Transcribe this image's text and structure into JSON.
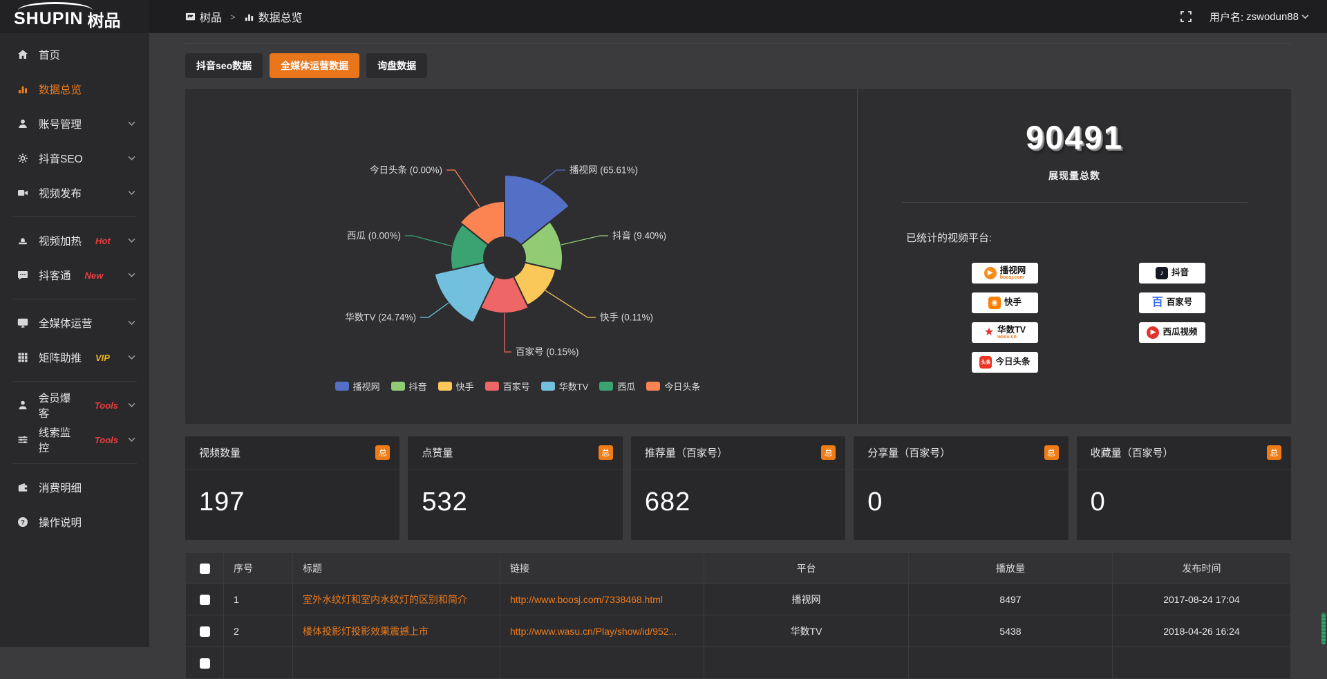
{
  "colors": {
    "accent_orange": "#e9761b",
    "hot_red": "#f23c3c",
    "vip_gold": "#e8b425",
    "link_orange": "#ef7b1a"
  },
  "header": {
    "logo_en": "SHUPIN",
    "logo_cn": "树品",
    "breadcrumb": [
      {
        "label": "树品"
      },
      {
        "label": "数据总览"
      }
    ],
    "username_label": "用户名:",
    "username": "zswodun88"
  },
  "sidebar": {
    "items": [
      {
        "label": "首页",
        "icon": "home-icon",
        "active": false,
        "expandable": false
      },
      {
        "label": "数据总览",
        "icon": "bar-chart-icon",
        "active": true,
        "expandable": false
      },
      {
        "label": "账号管理",
        "icon": "user-icon",
        "active": false,
        "expandable": true
      },
      {
        "label": "抖音SEO",
        "icon": "gear-icon",
        "active": false,
        "expandable": true
      },
      {
        "label": "视频发布",
        "icon": "video-icon",
        "active": false,
        "expandable": true
      },
      {
        "type": "divider"
      },
      {
        "label": "视频加热",
        "icon": "stamp-icon",
        "badge": "Hot",
        "badge_color": "#f23c3c",
        "active": false,
        "expandable": true
      },
      {
        "label": "抖客通",
        "icon": "chat-icon",
        "badge": "New",
        "badge_color": "#f23c3c",
        "active": false,
        "expandable": true
      },
      {
        "type": "divider"
      },
      {
        "label": "全媒体运营",
        "icon": "monitor-icon",
        "active": false,
        "expandable": true
      },
      {
        "label": "矩阵助推",
        "icon": "grid-icon",
        "badge": "VIP",
        "badge_color": "#e8b425",
        "active": false,
        "expandable": true
      },
      {
        "type": "divider"
      },
      {
        "label": "会员爆客",
        "icon": "member-icon",
        "badge": "Tools",
        "badge_color": "#f23c3c",
        "active": false,
        "expandable": true
      },
      {
        "label": "线索监控",
        "icon": "sliders-icon",
        "badge": "Tools",
        "badge_color": "#f23c3c",
        "active": false,
        "expandable": true
      },
      {
        "type": "divider"
      },
      {
        "label": "消费明细",
        "icon": "wallet-icon",
        "active": false,
        "expandable": false
      },
      {
        "label": "操作说明",
        "icon": "question-icon",
        "active": false,
        "expandable": false
      }
    ]
  },
  "tabs": [
    {
      "label": "抖音seo数据",
      "active": false
    },
    {
      "label": "全媒体运营数据",
      "active": true
    },
    {
      "label": "询盘数据",
      "active": false
    }
  ],
  "chart_data": {
    "type": "pie",
    "style": "nightingale-rose-donut",
    "legend_position": "bottom",
    "items": [
      {
        "name": "播视网",
        "percent": 65.61,
        "color": "#5470c6"
      },
      {
        "name": "抖音",
        "percent": 9.4,
        "color": "#91cc75"
      },
      {
        "name": "快手",
        "percent": 0.11,
        "color": "#fac858"
      },
      {
        "name": "百家号",
        "percent": 0.15,
        "color": "#ee6666"
      },
      {
        "name": "华数TV",
        "percent": 24.74,
        "color": "#73c0de"
      },
      {
        "name": "西瓜",
        "percent": 0.0,
        "color": "#3ba272"
      },
      {
        "name": "今日头条",
        "percent": 0.0,
        "color": "#fc8452"
      }
    ]
  },
  "summary": {
    "total_value": "90491",
    "total_label": "展现量总数",
    "platforms_label": "已统计的视频平台:",
    "platforms": [
      {
        "name": "播视网",
        "sub": "boosj.com",
        "sub_color": "#f27a1a",
        "logo": {
          "shape": "circle",
          "bg": "#f78c1f",
          "fg": "#ffffff",
          "glyph": "▶"
        }
      },
      {
        "name": "抖音",
        "logo": {
          "shape": "square",
          "bg": "#161823",
          "fg": "#ffffff",
          "glyph": "♪"
        }
      },
      {
        "name": "快手",
        "logo": {
          "shape": "square",
          "bg": "#ff7e00",
          "fg": "#ffffff",
          "glyph": "◉"
        }
      },
      {
        "name": "百家号",
        "logo": {
          "shape": "text",
          "bg": "transparent",
          "fg": "#3a6bf0",
          "glyph": "百"
        }
      },
      {
        "name": "华数TV",
        "sub": "wasu.cn",
        "sub_color": "#f27a1a",
        "logo": {
          "shape": "text",
          "bg": "transparent",
          "fg": "#e6302e",
          "glyph": "★"
        }
      },
      {
        "name": "西瓜视频",
        "logo": {
          "shape": "circle",
          "bg": "#e0332c",
          "fg": "#ffffff",
          "glyph": "▶"
        }
      },
      {
        "name": "今日头条",
        "logo": {
          "shape": "square",
          "bg": "#ed3321",
          "fg": "#ffffff",
          "glyph": "头条"
        }
      }
    ]
  },
  "stat_cards": [
    {
      "title": "视频数量",
      "badge": "总",
      "value": "197"
    },
    {
      "title": "点赞量",
      "badge": "总",
      "value": "532"
    },
    {
      "title": "推荐量（百家号）",
      "badge": "总",
      "value": "682"
    },
    {
      "title": "分享量（百家号）",
      "badge": "总",
      "value": "0"
    },
    {
      "title": "收藏量（百家号）",
      "badge": "总",
      "value": "0"
    }
  ],
  "table": {
    "headers": [
      "序号",
      "标题",
      "链接",
      "平台",
      "播放量",
      "发布时间"
    ],
    "rows": [
      {
        "index": "1",
        "title": "室外水纹灯和室内水纹灯的区别和简介",
        "link": "http://www.boosj.com/7338468.html",
        "platform": "播视网",
        "plays": "8497",
        "published": "2017-08-24 17:04"
      },
      {
        "index": "2",
        "title": "楼体投影灯投影效果震撼上市",
        "link": "http://www.wasu.cn/Play/show/id/952...",
        "platform": "华数TV",
        "plays": "5438",
        "published": "2018-04-26 16:24"
      }
    ]
  }
}
